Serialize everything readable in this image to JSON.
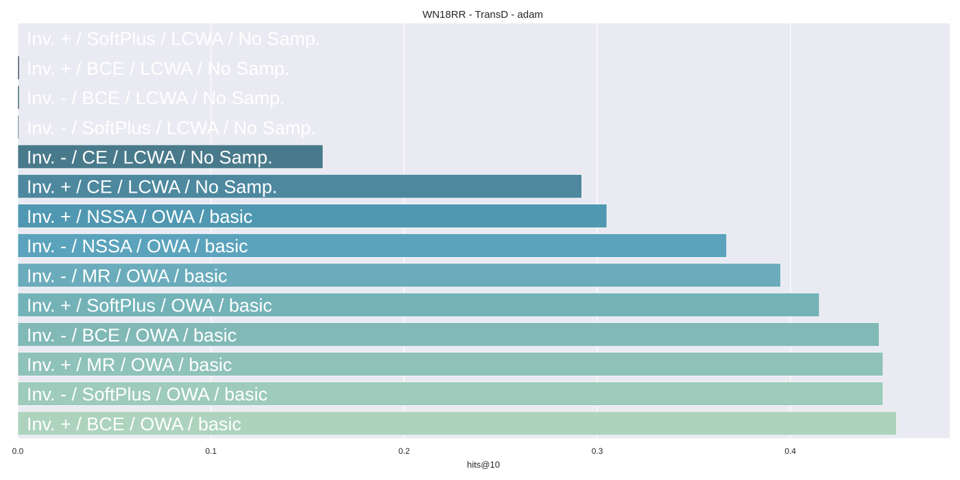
{
  "chart_data": {
    "type": "bar",
    "orientation": "horizontal",
    "title": "WN18RR - TransD - adam",
    "xlabel": "hits@10",
    "ylabel": "",
    "xlim": [
      0,
      0.4825
    ],
    "xticks": [
      0.0,
      0.1,
      0.2,
      0.3,
      0.4
    ],
    "xtick_labels": [
      "0.0",
      "0.1",
      "0.2",
      "0.3",
      "0.4"
    ],
    "grid": true,
    "categories": [
      "Inv. + / SoftPlus / LCWA / No Samp.",
      "Inv. + / BCE / LCWA / No Samp.",
      "Inv. - / BCE / LCWA / No Samp.",
      "Inv. - / SoftPlus / LCWA / No Samp.",
      "Inv. - / CE / LCWA / No Samp.",
      "Inv. + / CE / LCWA / No Samp.",
      "Inv. + / NSSA / OWA / basic",
      "Inv. - / NSSA / OWA / basic",
      "Inv. - / MR / OWA / basic",
      "Inv. + / SoftPlus / OWA / basic",
      "Inv. - / BCE / OWA / basic",
      "Inv. + / MR / OWA / basic",
      "Inv. - / SoftPlus / OWA / basic",
      "Inv. + / BCE / OWA / basic"
    ],
    "values": [
      0.0001,
      0.0008,
      0.0008,
      0.0006,
      0.158,
      0.292,
      0.305,
      0.367,
      0.395,
      0.415,
      0.446,
      0.448,
      0.448,
      0.455
    ],
    "colors": [
      "#2c3e50",
      "#34495e",
      "#3b5a6b",
      "#416a7a",
      "#497a8b",
      "#4d889f",
      "#5098b2",
      "#5ba3bc",
      "#6aacbb",
      "#73b3b8",
      "#81b9b7",
      "#8fc2b8",
      "#9ecbbb",
      "#add3bc"
    ],
    "background": "#eaeaf2",
    "gridline_color": "#ffffff"
  }
}
